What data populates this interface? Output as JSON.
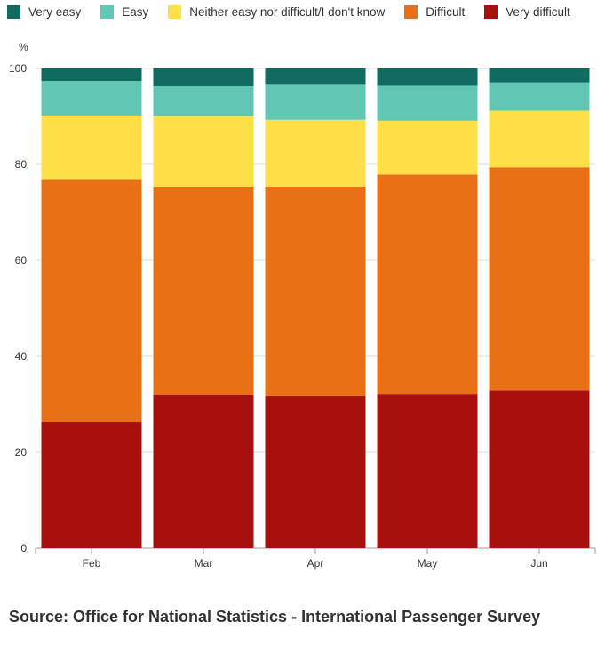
{
  "chart_data": {
    "type": "bar",
    "stacked": true,
    "ylabel": "%",
    "ylim": [
      0,
      100
    ],
    "yticks": [
      0,
      20,
      40,
      60,
      80,
      100
    ],
    "grid": true,
    "legend_position": "top-left",
    "categories": [
      "Feb",
      "Mar",
      "Apr",
      "May",
      "Jun"
    ],
    "series": [
      {
        "name": "Very difficult",
        "color": "#a8100e",
        "values": [
          26.3,
          32.0,
          31.7,
          32.2,
          32.9
        ]
      },
      {
        "name": "Difficult",
        "color": "#ea7016",
        "values": [
          50.5,
          43.2,
          43.7,
          45.7,
          46.5
        ]
      },
      {
        "name": "Neither easy nor difficult/I don't know",
        "color": "#fddf48",
        "values": [
          13.4,
          14.9,
          13.9,
          11.2,
          11.8
        ]
      },
      {
        "name": "Easy",
        "color": "#62c6b4",
        "values": [
          7.2,
          6.2,
          7.3,
          7.3,
          5.9
        ]
      },
      {
        "name": "Very easy",
        "color": "#106a5f",
        "values": [
          2.6,
          3.7,
          3.4,
          3.6,
          2.9
        ]
      }
    ],
    "legend_order": [
      "Very easy",
      "Easy",
      "Neither easy nor difficult/I don't know",
      "Difficult",
      "Very difficult"
    ]
  },
  "source": "Source: Office for National Statistics - International Passenger Survey"
}
